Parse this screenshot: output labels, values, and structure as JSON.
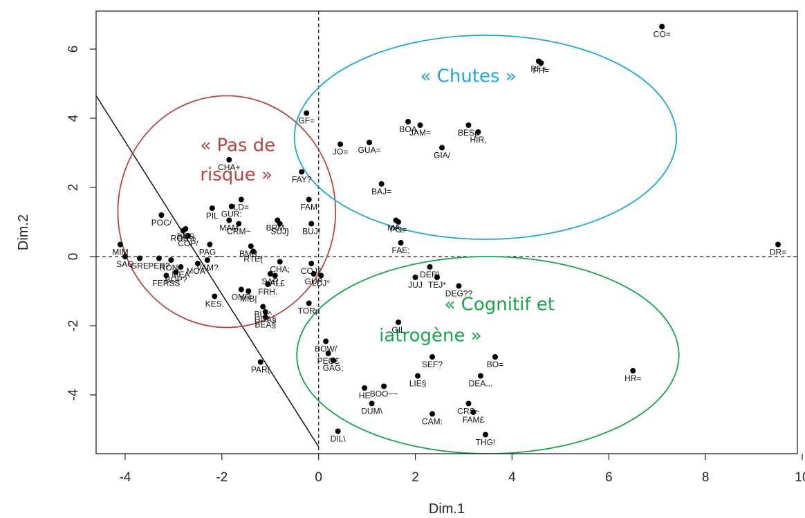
{
  "chart_data": {
    "type": "scatter",
    "xlabel": "Dim.1",
    "ylabel": "Dim.2",
    "xlim": [
      -4.6,
      9.9
    ],
    "ylim": [
      -5.7,
      7.1
    ],
    "x_ticks": [
      -4,
      -2,
      0,
      2,
      4,
      6,
      8,
      10
    ],
    "y_ticks": [
      -4,
      -2,
      0,
      2,
      4,
      6
    ],
    "grid": false,
    "reference_lines": {
      "x": 0,
      "y": 0,
      "style": "dashed"
    },
    "separator_line": {
      "from": [
        -4.6,
        4.65
      ],
      "to": [
        0.0,
        -5.5
      ]
    },
    "groups": [
      {
        "label_lines": [
          "« Pas de",
          "risque »"
        ],
        "color": "#b5463f",
        "ellipse": {
          "cx": -1.9,
          "cy": 1.3,
          "rx": 2.25,
          "ry": 3.35
        },
        "label_at": [
          [
            -2.45,
            3.05
          ],
          [
            -2.45,
            2.2
          ]
        ]
      },
      {
        "label_lines": [
          "« Chutes »"
        ],
        "color": "#1ba8d8",
        "ellipse": {
          "cx": 3.45,
          "cy": 3.45,
          "rx": 3.95,
          "ry": 2.95
        },
        "label_at": [
          [
            2.1,
            5.05
          ]
        ]
      },
      {
        "label_lines": [
          "« Cognitif et",
          "iatrogène »"
        ],
        "color": "#18a54a",
        "ellipse": {
          "cx": 3.5,
          "cy": -2.85,
          "rx": 3.95,
          "ry": 2.85
        },
        "label_at": [
          [
            2.6,
            -1.55
          ],
          [
            1.25,
            -2.45
          ]
        ]
      }
    ],
    "points": [
      {
        "label": "CO=",
        "x": 7.1,
        "y": 6.65
      },
      {
        "label": "RF+",
        "x": 4.55,
        "y": 5.65
      },
      {
        "label": "PH=",
        "x": 4.6,
        "y": 5.6
      },
      {
        "label": "GF=",
        "x": -0.25,
        "y": 4.15
      },
      {
        "label": "BOA",
        "x": 1.85,
        "y": 3.9
      },
      {
        "label": "JAM=",
        "x": 2.1,
        "y": 3.8
      },
      {
        "label": "BESµ",
        "x": 3.1,
        "y": 3.8
      },
      {
        "label": "HIR,",
        "x": 3.3,
        "y": 3.6
      },
      {
        "label": "JO=",
        "x": 0.45,
        "y": 3.25
      },
      {
        "label": "GUA=",
        "x": 1.05,
        "y": 3.3
      },
      {
        "label": "GIA/",
        "x": 2.55,
        "y": 3.15
      },
      {
        "label": "CHA+",
        "x": -1.85,
        "y": 2.8
      },
      {
        "label": "FAY?",
        "x": -0.35,
        "y": 2.45
      },
      {
        "label": "BAJ=",
        "x": 1.3,
        "y": 2.1
      },
      {
        "label": "FAM",
        "x": -0.2,
        "y": 1.65
      },
      {
        "label": "LD=",
        "x": -1.6,
        "y": 1.65
      },
      {
        "label": "POC/",
        "x": -3.25,
        "y": 1.2
      },
      {
        "label": "PIL",
        "x": -2.2,
        "y": 1.4
      },
      {
        "label": "GUR:",
        "x": -1.8,
        "y": 1.45
      },
      {
        "label": "MAM",
        "x": -1.85,
        "y": 1.05
      },
      {
        "label": "CRM~",
        "x": -1.65,
        "y": 0.95
      },
      {
        "label": "BRM..",
        "x": -0.85,
        "y": 1.05
      },
      {
        "label": "SUJ}",
        "x": -0.8,
        "y": 0.95
      },
      {
        "label": "BUJ!",
        "x": -0.15,
        "y": 0.95
      },
      {
        "label": "MA_",
        "x": 1.6,
        "y": 1.05
      },
      {
        "label": "PO=",
        "x": 1.65,
        "y": 1.0
      },
      {
        "label": "FAE;",
        "x": 1.7,
        "y": 0.4
      },
      {
        "label": "ROS%",
        "x": -2.8,
        "y": 0.75
      },
      {
        "label": "BOS",
        "x": -2.75,
        "y": 0.8
      },
      {
        "label": "COP/",
        "x": -2.7,
        "y": 0.6
      },
      {
        "label": "PAG_",
        "x": -2.25,
        "y": 0.35
      },
      {
        "label": "BMR_",
        "x": -1.4,
        "y": 0.3
      },
      {
        "label": "RTE(",
        "x": -1.35,
        "y": 0.15
      },
      {
        "label": "CHA;",
        "x": -0.8,
        "y": -0.15
      },
      {
        "label": "COJ£",
        "x": -0.15,
        "y": -0.2
      },
      {
        "label": "MIM",
        "x": -4.1,
        "y": 0.35
      },
      {
        "label": "SAG",
        "x": -4.0,
        "y": 0.0
      },
      {
        "label": "GRE",
        "x": -3.7,
        "y": -0.05
      },
      {
        "label": "PER?",
        "x": -3.3,
        "y": -0.05
      },
      {
        "label": "RON#",
        "x": -3.05,
        "y": -0.1
      },
      {
        "label": "VAM?",
        "x": -2.3,
        "y": -0.1
      },
      {
        "label": "MOA^",
        "x": -2.5,
        "y": -0.2
      },
      {
        "label": "MEA",
        "x": -2.85,
        "y": -0.3
      },
      {
        "label": "BOP?",
        "x": -2.95,
        "y": -0.45
      },
      {
        "label": "FERSS",
        "x": -3.15,
        "y": -0.55
      },
      {
        "label": "SAR",
        "x": -1.0,
        "y": -0.5
      },
      {
        "label": "LAL£",
        "x": -0.9,
        "y": -0.55
      },
      {
        "label": "GUP",
        "x": -0.1,
        "y": -0.5
      },
      {
        "label": "LDJ°",
        "x": 0.05,
        "y": -0.55
      },
      {
        "label": "FRH.",
        "x": -1.05,
        "y": -0.8
      },
      {
        "label": "OMR",
        "x": -1.6,
        "y": -0.95
      },
      {
        "label": "MIB|",
        "x": -1.45,
        "y": -1.0
      },
      {
        "label": "KES.",
        "x": -2.15,
        "y": -1.15
      },
      {
        "label": "BUI^",
        "x": -1.15,
        "y": -1.45
      },
      {
        "label": "HUA§",
        "x": -1.1,
        "y": -1.6
      },
      {
        "label": "BEA§",
        "x": -1.1,
        "y": -1.75
      },
      {
        "label": "TORµ",
        "x": -0.2,
        "y": -1.35
      },
      {
        "label": "DEP}",
        "x": 2.3,
        "y": -0.3
      },
      {
        "label": "JUJ",
        "x": 2.0,
        "y": -0.6
      },
      {
        "label": "TEJ*",
        "x": 2.45,
        "y": -0.6
      },
      {
        "label": "DEG??",
        "x": 2.9,
        "y": -0.85
      },
      {
        "label": "GIL",
        "x": 1.65,
        "y": -1.9
      },
      {
        "label": "BOW/",
        "x": 0.15,
        "y": -2.45
      },
      {
        "label": "PEG£",
        "x": 0.2,
        "y": -2.8
      },
      {
        "label": "GAG;",
        "x": 0.3,
        "y": -3.0
      },
      {
        "label": "SEF?",
        "x": 2.35,
        "y": -2.9
      },
      {
        "label": "BO=",
        "x": 3.65,
        "y": -2.9
      },
      {
        "label": "HR=",
        "x": 6.5,
        "y": -3.3
      },
      {
        "label": "LIE§",
        "x": 2.05,
        "y": -3.45
      },
      {
        "label": "DEA...",
        "x": 3.35,
        "y": -3.45
      },
      {
        "label": "HE",
        "x": 0.95,
        "y": -3.8
      },
      {
        "label": "BOO~~",
        "x": 1.35,
        "y": -3.75
      },
      {
        "label": "DUM\\",
        "x": 1.1,
        "y": -4.25
      },
      {
        "label": "CRS~",
        "x": 3.1,
        "y": -4.25
      },
      {
        "label": "FAM£",
        "x": 3.2,
        "y": -4.5
      },
      {
        "label": "CAM:",
        "x": 2.35,
        "y": -4.55
      },
      {
        "label": "DIL\\",
        "x": 0.4,
        "y": -5.05
      },
      {
        "label": "THG!",
        "x": 3.45,
        "y": -5.15
      },
      {
        "label": "PAR(",
        "x": -1.2,
        "y": -3.05
      },
      {
        "label": "DR=",
        "x": 9.5,
        "y": 0.35
      }
    ]
  }
}
